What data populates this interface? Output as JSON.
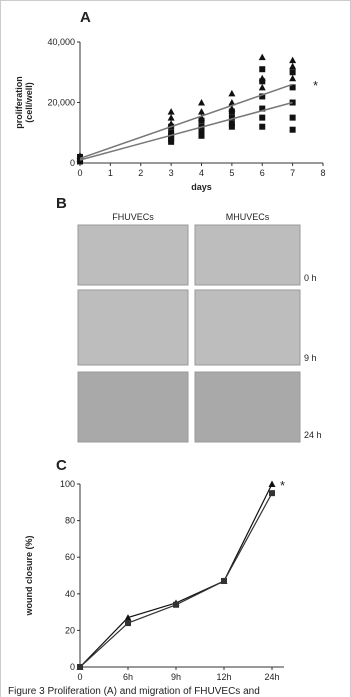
{
  "panel_labels": [
    "A",
    "B",
    "C"
  ],
  "chart_data": [
    {
      "type": "scatter",
      "x_label": "days",
      "y_label": [
        "proliferation",
        "(cell/well)"
      ],
      "annotation": "*",
      "xlim": [
        0,
        8
      ],
      "xticks": [
        0,
        1,
        2,
        3,
        4,
        5,
        6,
        7,
        8
      ],
      "ylim": [
        0,
        40000
      ],
      "yticks": [
        0,
        {
          "value": 20000,
          "label": "20,000"
        },
        {
          "value": 40000,
          "label": "40,000"
        }
      ],
      "series": [
        {
          "marker": "triangle",
          "color": "#111111",
          "x": [
            0,
            0,
            3,
            3,
            3,
            4,
            4,
            4,
            5,
            5,
            5,
            6,
            6,
            6,
            7,
            7,
            7
          ],
          "values": [
            1500,
            2500,
            17000,
            15000,
            13000,
            20000,
            17000,
            15000,
            23000,
            20000,
            18000,
            35000,
            28000,
            25000,
            34000,
            32000,
            28000
          ]
        },
        {
          "marker": "square",
          "color": "#111111",
          "x": [
            0,
            0,
            0,
            3,
            3,
            3,
            3,
            3,
            4,
            4,
            4,
            4,
            4,
            5,
            5,
            5,
            5,
            6,
            6,
            6,
            6,
            6,
            6,
            7,
            7,
            7,
            7,
            7
          ],
          "values": [
            500,
            1000,
            2000,
            12000,
            10000,
            9000,
            8000,
            7000,
            14000,
            12000,
            11000,
            10000,
            9000,
            17000,
            15000,
            13000,
            12000,
            31000,
            27000,
            22000,
            18000,
            15000,
            12000,
            30000,
            25000,
            20000,
            15000,
            11000
          ]
        },
        {
          "marker": "line",
          "color": "#777777",
          "x": [
            0,
            7
          ],
          "values": [
            1500,
            26000
          ]
        },
        {
          "marker": "line",
          "color": "#777777",
          "x": [
            0,
            7
          ],
          "values": [
            1000,
            20000
          ]
        }
      ]
    },
    {
      "type": "line",
      "y_label": "wound closure (%)",
      "annotation": "*",
      "categories": [
        "0",
        "6h",
        "9h",
        "12h",
        "24h"
      ],
      "ylim": [
        0,
        100
      ],
      "yticks": [
        0,
        20,
        40,
        60,
        80,
        100
      ],
      "series": [
        {
          "marker": "triangle",
          "color": "#111111",
          "values": [
            0,
            27,
            35,
            47,
            100
          ]
        },
        {
          "marker": "square",
          "color": "#333333",
          "values": [
            0,
            24,
            34,
            47,
            95
          ]
        }
      ]
    }
  ],
  "micrographs": {
    "columns": [
      "FHUVECs",
      "MHUVECs"
    ],
    "rows": [
      "0 h",
      "9 h",
      "24 h"
    ]
  },
  "caption": "Figure 3 Proliferation (A) and migration of FHUVECs and"
}
